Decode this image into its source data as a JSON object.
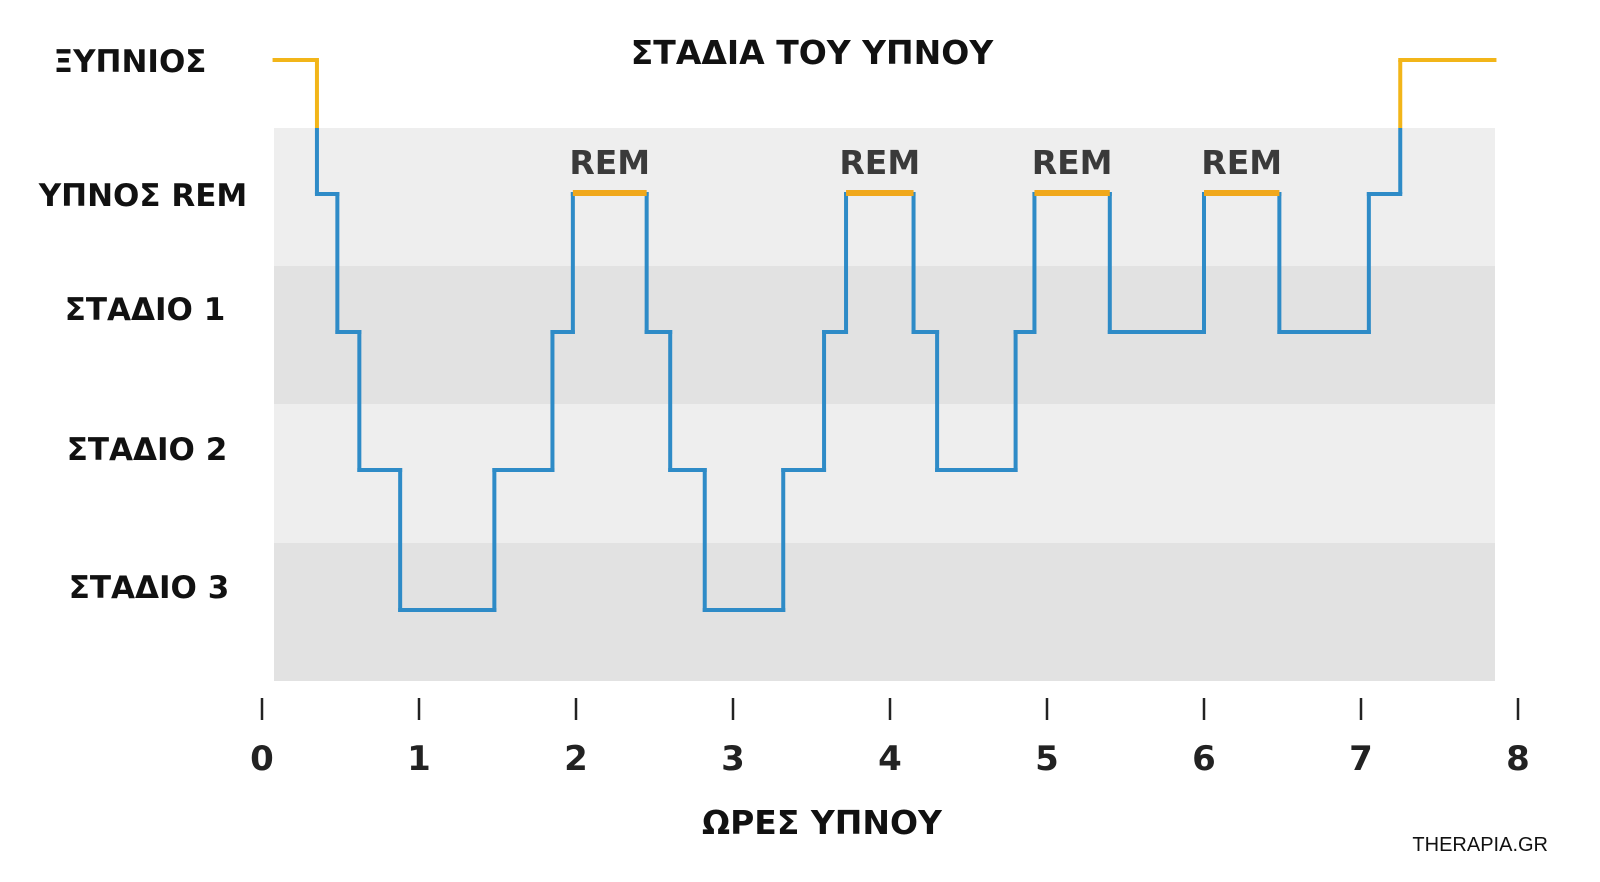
{
  "chart_data": {
    "type": "line",
    "title": "ΣΤΑΔΙΑ ΤΟΥ ΥΠΝΟΥ",
    "xlabel": "ΩΡΕΣ ΥΠΝΟΥ",
    "xlim": [
      0,
      8
    ],
    "x_ticks": [
      "0",
      "1",
      "2",
      "3",
      "4",
      "5",
      "6",
      "7",
      "8"
    ],
    "y_categories": [
      "ΞΥΠΝΙΟΣ",
      "ΥΠΝΟΣ REM",
      "ΣΤΑΔΙΟ 1",
      "ΣΤΑΔΙΟ 2",
      "ΣΤΑΔΙΟ 3"
    ],
    "series": [
      {
        "x": [
          0.08,
          0.35,
          0.35,
          0.48,
          0.48,
          0.62,
          0.62,
          0.88,
          0.88,
          1.48,
          1.48,
          1.85,
          1.85,
          1.98,
          1.98,
          2.45,
          2.45,
          2.6,
          2.6,
          2.82,
          2.82,
          3.32,
          3.32,
          3.58,
          3.58,
          3.72,
          3.72,
          4.15,
          4.15,
          4.3,
          4.3,
          4.8,
          4.8,
          4.92,
          4.92,
          5.4,
          5.4,
          6.0,
          6.0,
          6.48,
          6.48,
          7.05,
          7.05,
          7.25,
          7.25,
          7.85
        ],
        "y": [
          "ΞΥΠΝΙΟΣ",
          "ΞΥΠΝΙΟΣ",
          "ΥΠΝΟΣ REM",
          "ΥΠΝΟΣ REM",
          "ΣΤΑΔΙΟ 1",
          "ΣΤΑΔΙΟ 1",
          "ΣΤΑΔΙΟ 2",
          "ΣΤΑΔΙΟ 2",
          "ΣΤΑΔΙΟ 3",
          "ΣΤΑΔΙΟ 3",
          "ΣΤΑΔΙΟ 2",
          "ΣΤΑΔΙΟ 2",
          "ΣΤΑΔΙΟ 1",
          "ΣΤΑΔΙΟ 1",
          "ΥΠΝΟΣ REM",
          "ΥΠΝΟΣ REM",
          "ΣΤΑΔΙΟ 1",
          "ΣΤΑΔΙΟ 1",
          "ΣΤΑΔΙΟ 2",
          "ΣΤΑΔΙΟ 2",
          "ΣΤΑΔΙΟ 3",
          "ΣΤΑΔΙΟ 3",
          "ΣΤΑΔΙΟ 2",
          "ΣΤΑΔΙΟ 2",
          "ΣΤΑΔΙΟ 1",
          "ΣΤΑΔΙΟ 1",
          "ΥΠΝΟΣ REM",
          "ΥΠΝΟΣ REM",
          "ΣΤΑΔΙΟ 1",
          "ΣΤΑΔΙΟ 1",
          "ΣΤΑΔΙΟ 2",
          "ΣΤΑΔΙΟ 2",
          "ΣΤΑΔΙΟ 1",
          "ΣΤΑΔΙΟ 1",
          "ΥΠΝΟΣ REM",
          "ΥΠΝΟΣ REM",
          "ΣΤΑΔΙΟ 1",
          "ΣΤΑΔΙΟ 1",
          "ΥΠΝΟΣ REM",
          "ΥΠΝΟΣ REM",
          "ΣΤΑΔΙΟ 1",
          "ΣΤΑΔΙΟ 1",
          "ΥΠΝΟΣ REM",
          "ΥΠΝΟΣ REM",
          "ΞΥΠΝΙΟΣ",
          "ΞΥΠΝΙΟΣ"
        ]
      }
    ],
    "rem_periods": [
      {
        "label": "REM",
        "x_start": 1.98,
        "x_end": 2.45
      },
      {
        "label": "REM",
        "x_start": 3.72,
        "x_end": 4.15
      },
      {
        "label": "REM",
        "x_start": 4.92,
        "x_end": 5.4
      },
      {
        "label": "REM",
        "x_start": 6.0,
        "x_end": 6.48
      }
    ],
    "grid": false
  },
  "colors": {
    "awake": "#f2b519",
    "awake_label": "#e8a319",
    "sleep_line": "#2e8bc7",
    "rem_marker": "#f0a81c",
    "band_light": "#eeeeee",
    "band_dark": "#e2e2e2",
    "tick": "#222222"
  },
  "credit": "THERAPIA.GR"
}
